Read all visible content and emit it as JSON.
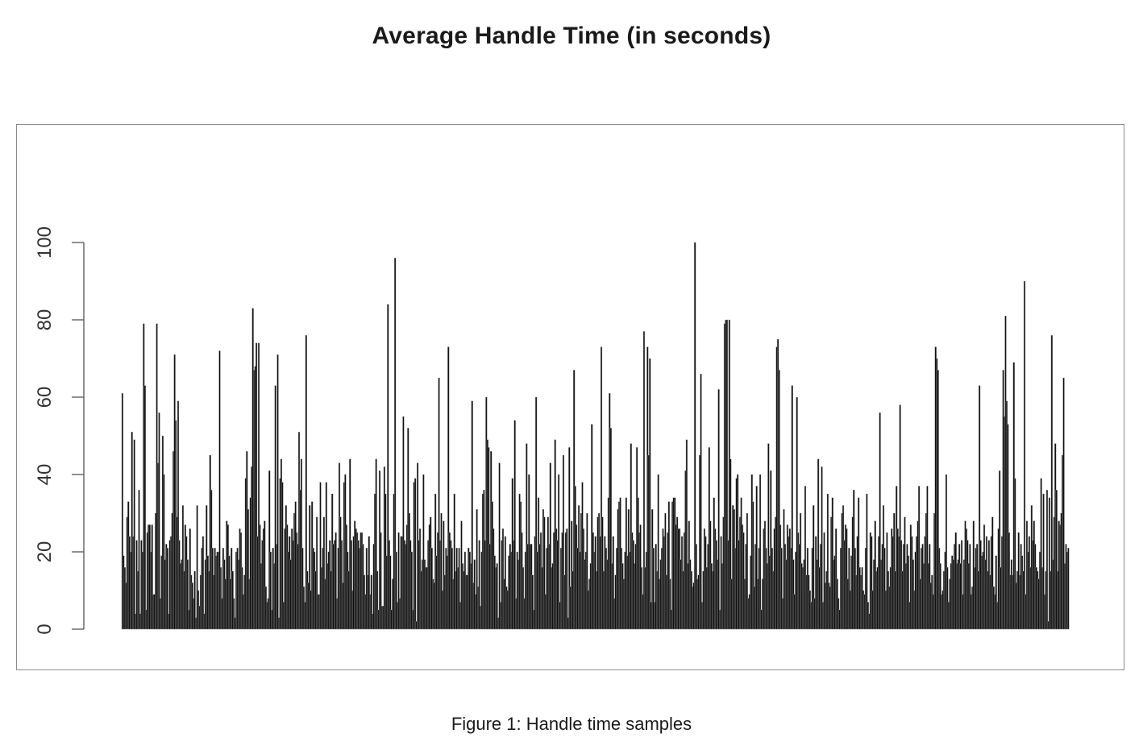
{
  "title": "Average Handle Time (in seconds)",
  "caption": "Figure 1: Handle time samples",
  "chart_data": {
    "type": "bar",
    "title": "Average Handle Time (in seconds)",
    "xlabel": "",
    "ylabel": "",
    "ylim": [
      0,
      100
    ],
    "yticks": [
      0,
      20,
      40,
      60,
      80,
      100
    ],
    "ytick_labels": [
      "0",
      "20",
      "40",
      "60",
      "80",
      "100"
    ],
    "grid": false,
    "bar_color": "#111111",
    "values": [
      61,
      19,
      16,
      12,
      29,
      33,
      24,
      20,
      51,
      24,
      49,
      4,
      23,
      15,
      36,
      4,
      23,
      20,
      79,
      63,
      5,
      25,
      27,
      27,
      20,
      27,
      9,
      9,
      30,
      79,
      43,
      56,
      8,
      19,
      50,
      40,
      18,
      22,
      21,
      4,
      23,
      24,
      30,
      46,
      71,
      54,
      29,
      59,
      23,
      17,
      18,
      32,
      15,
      27,
      24,
      18,
      5,
      26,
      14,
      12,
      8,
      15,
      3,
      32,
      10,
      6,
      14,
      21,
      24,
      4,
      18,
      32,
      19,
      15,
      45,
      36,
      21,
      14,
      21,
      19,
      20,
      20,
      72,
      16,
      8,
      21,
      18,
      13,
      28,
      27,
      19,
      13,
      21,
      15,
      8,
      3,
      20,
      21,
      18,
      26,
      25,
      16,
      9,
      14,
      39,
      46,
      31,
      13,
      34,
      42,
      83,
      67,
      68,
      74,
      24,
      74,
      27,
      17,
      23,
      26,
      28,
      11,
      7,
      8,
      41,
      20,
      5,
      21,
      17,
      63,
      22,
      71,
      3,
      39,
      44,
      38,
      7,
      26,
      32,
      27,
      20,
      24,
      18,
      26,
      23,
      30,
      33,
      25,
      22,
      51,
      36,
      44,
      21,
      11,
      7,
      76,
      15,
      12,
      32,
      10,
      33,
      21,
      20,
      15,
      29,
      9,
      9,
      38,
      16,
      21,
      29,
      13,
      38,
      17,
      20,
      23,
      15,
      35,
      22,
      23,
      25,
      8,
      21,
      43,
      29,
      23,
      12,
      38,
      40,
      27,
      20,
      15,
      44,
      23,
      10,
      24,
      28,
      26,
      25,
      23,
      21,
      25,
      25,
      22,
      14,
      9,
      21,
      14,
      24,
      9,
      14,
      4,
      22,
      35,
      44,
      15,
      5,
      41,
      25,
      6,
      6,
      42,
      35,
      19,
      84,
      23,
      19,
      5,
      13,
      35,
      96,
      20,
      7,
      25,
      8,
      24,
      24,
      55,
      23,
      22,
      27,
      52,
      30,
      23,
      20,
      5,
      38,
      39,
      2,
      43,
      23,
      26,
      15,
      18,
      40,
      18,
      16,
      16,
      23,
      27,
      29,
      21,
      13,
      12,
      35,
      19,
      25,
      65,
      23,
      30,
      10,
      28,
      14,
      21,
      19,
      73,
      25,
      23,
      21,
      13,
      35,
      15,
      21,
      16,
      21,
      7,
      28,
      17,
      15,
      20,
      14,
      14,
      21,
      20,
      17,
      59,
      12,
      18,
      9,
      31,
      11,
      23,
      6,
      20,
      35,
      36,
      23,
      60,
      49,
      47,
      22,
      46,
      33,
      26,
      19,
      16,
      17,
      3,
      43,
      7,
      23,
      26,
      13,
      24,
      11,
      10,
      19,
      22,
      20,
      39,
      23,
      54,
      8,
      20,
      18,
      35,
      33,
      25,
      16,
      8,
      20,
      48,
      22,
      40,
      22,
      22,
      14,
      5,
      24,
      60,
      20,
      34,
      22,
      25,
      16,
      31,
      29,
      9,
      21,
      29,
      22,
      43,
      16,
      17,
      25,
      49,
      26,
      23,
      40,
      7,
      21,
      25,
      45,
      14,
      25,
      26,
      3,
      47,
      11,
      28,
      15,
      67,
      37,
      27,
      21,
      32,
      20,
      30,
      38,
      26,
      18,
      20,
      30,
      10,
      13,
      17,
      53,
      25,
      20,
      24,
      15,
      29,
      30,
      24,
      73,
      29,
      15,
      24,
      21,
      18,
      34,
      61,
      52,
      17,
      24,
      8,
      14,
      21,
      31,
      33,
      34,
      21,
      17,
      13,
      20,
      34,
      19,
      31,
      20,
      48,
      25,
      23,
      17,
      22,
      47,
      34,
      25,
      27,
      16,
      9,
      77,
      16,
      20,
      73,
      45,
      70,
      7,
      31,
      21,
      7,
      22,
      15,
      40,
      13,
      18,
      21,
      26,
      24,
      30,
      14,
      25,
      33,
      13,
      5,
      33,
      34,
      34,
      27,
      29,
      26,
      26,
      18,
      24,
      15,
      25,
      41,
      49,
      17,
      28,
      18,
      15,
      11,
      12,
      100,
      22,
      13,
      14,
      45,
      66,
      7,
      15,
      26,
      24,
      16,
      22,
      47,
      28,
      17,
      15,
      34,
      26,
      23,
      18,
      62,
      5,
      24,
      17,
      29,
      79,
      80,
      80,
      23,
      80,
      44,
      13,
      32,
      31,
      21,
      39,
      40,
      23,
      29,
      34,
      27,
      25,
      13,
      22,
      30,
      8,
      9,
      19,
      40,
      33,
      11,
      22,
      37,
      13,
      21,
      40,
      5,
      13,
      26,
      28,
      21,
      17,
      48,
      19,
      41,
      21,
      15,
      26,
      29,
      73,
      75,
      67,
      27,
      21,
      8,
      31,
      22,
      18,
      27,
      24,
      26,
      21,
      63,
      18,
      9,
      20,
      60,
      25,
      22,
      30,
      17,
      16,
      18,
      37,
      14,
      21,
      14,
      10,
      7,
      21,
      32,
      8,
      24,
      18,
      44,
      16,
      22,
      42,
      7,
      25,
      12,
      15,
      35,
      12,
      11,
      29,
      34,
      18,
      19,
      26,
      13,
      8,
      5,
      21,
      30,
      32,
      23,
      27,
      26,
      13,
      21,
      10,
      19,
      29,
      36,
      21,
      14,
      24,
      34,
      16,
      14,
      16,
      10,
      9,
      21,
      35,
      7,
      4,
      25,
      24,
      10,
      18,
      28,
      15,
      16,
      24,
      56,
      18,
      22,
      32,
      21,
      10,
      25,
      15,
      11,
      16,
      26,
      24,
      30,
      15,
      37,
      26,
      24,
      58,
      23,
      15,
      22,
      29,
      17,
      22,
      19,
      7,
      27,
      24,
      18,
      10,
      20,
      24,
      28,
      37,
      13,
      21,
      22,
      17,
      24,
      30,
      37,
      17,
      22,
      12,
      14,
      9,
      30,
      73,
      70,
      67,
      21,
      17,
      9,
      10,
      15,
      20,
      40,
      16,
      7,
      13,
      17,
      19,
      18,
      22,
      25,
      17,
      18,
      22,
      17,
      23,
      9,
      18,
      28,
      26,
      23,
      17,
      22,
      9,
      11,
      28,
      16,
      21,
      22,
      15,
      63,
      23,
      19,
      20,
      27,
      18,
      24,
      15,
      23,
      14,
      24,
      29,
      11,
      9,
      19,
      7,
      26,
      41,
      16,
      24,
      67,
      55,
      81,
      59,
      53,
      25,
      14,
      18,
      14,
      69,
      39,
      12,
      15,
      25,
      14,
      22,
      19,
      15,
      90,
      9,
      28,
      20,
      24,
      16,
      32,
      23,
      28,
      22,
      16,
      15,
      13,
      20,
      39,
      16,
      35,
      9,
      15,
      36,
      2,
      34,
      15,
      76,
      18,
      29,
      48,
      36,
      15,
      28,
      27,
      30,
      45,
      65,
      17,
      22,
      20,
      21
    ]
  }
}
